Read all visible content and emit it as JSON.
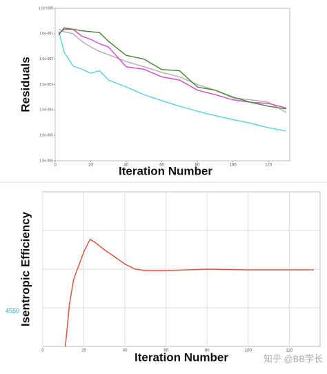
{
  "chart_data": [
    {
      "type": "line",
      "log_scale": true,
      "ylabel": "Residuals",
      "xlabel": "Iteration Number",
      "x": [
        2,
        5,
        10,
        15,
        20,
        25,
        30,
        40,
        50,
        60,
        70,
        80,
        90,
        100,
        110,
        120,
        130
      ],
      "xlim": [
        0,
        132
      ],
      "xticks": [
        0,
        20,
        40,
        60,
        80,
        100,
        120
      ],
      "ylim": [
        1e-06,
        1
      ],
      "yticks": [
        {
          "value": 1,
          "label": "1.0e+000"
        },
        {
          "value": 0.1,
          "label": "1.0e-001"
        },
        {
          "value": 0.01,
          "label": "1.0e-002"
        },
        {
          "value": 0.001,
          "label": "1.0e-003"
        },
        {
          "value": 0.0001,
          "label": "1.0e-004"
        },
        {
          "value": 1e-05,
          "label": "1.0e-005"
        },
        {
          "value": 1e-06,
          "label": "1.0e-006"
        }
      ],
      "grid": false,
      "series": [
        {
          "color": "#5fd3de",
          "values": [
            0.126,
            0.019,
            0.0054,
            0.004,
            0.0028,
            0.0035,
            0.0015,
            0.0008,
            0.0004,
            0.00023,
            0.00014,
            8.9e-05,
            6e-05,
            4.2e-05,
            3e-05,
            2e-05,
            1.5e-05
          ]
        },
        {
          "color": "#b8b0b0",
          "values": [
            0.15,
            0.12,
            0.1,
            0.05,
            0.03,
            0.02,
            0.015,
            0.008,
            0.005,
            0.003,
            0.002,
            0.001,
            0.0006,
            0.0003,
            0.00025,
            0.0002,
            8e-05
          ]
        },
        {
          "color": "#d84fd0",
          "values": [
            0.1,
            0.15,
            0.15,
            0.08,
            0.06,
            0.04,
            0.03,
            0.005,
            0.004,
            0.002,
            0.0015,
            0.0006,
            0.0004,
            0.00025,
            0.0002,
            0.00018,
            0.00012
          ]
        },
        {
          "color": "#4c8a3c",
          "values": [
            0.09,
            0.17,
            0.15,
            0.13,
            0.12,
            0.11,
            0.05,
            0.014,
            0.01,
            0.0039,
            0.0035,
            0.0008,
            0.0006,
            0.00032,
            0.0002,
            0.00014,
            0.00011
          ]
        }
      ]
    },
    {
      "type": "line",
      "log_scale": false,
      "ylabel": "Isentropic  Efficiency",
      "xlabel": "Iteration Number",
      "x": [
        11,
        13,
        15,
        20,
        23,
        25,
        30,
        35,
        40,
        45,
        50,
        60,
        80,
        100,
        132
      ],
      "xlim": [
        0,
        135
      ],
      "xticks": [
        0,
        20,
        40,
        60,
        80,
        100,
        120
      ],
      "ylim": [
        0,
        4
      ],
      "yticks": [
        1,
        2,
        3
      ],
      "ytick_labels": false,
      "grid": true,
      "annotation": "4550",
      "series": [
        {
          "color": "#d9573e",
          "values": [
            0,
            1.1,
            1.73,
            2.45,
            2.77,
            2.71,
            2.5,
            2.32,
            2.13,
            2.0,
            1.96,
            1.96,
            2.0,
            1.98,
            1.98
          ]
        }
      ]
    }
  ],
  "watermark": "知乎 @BB学长"
}
